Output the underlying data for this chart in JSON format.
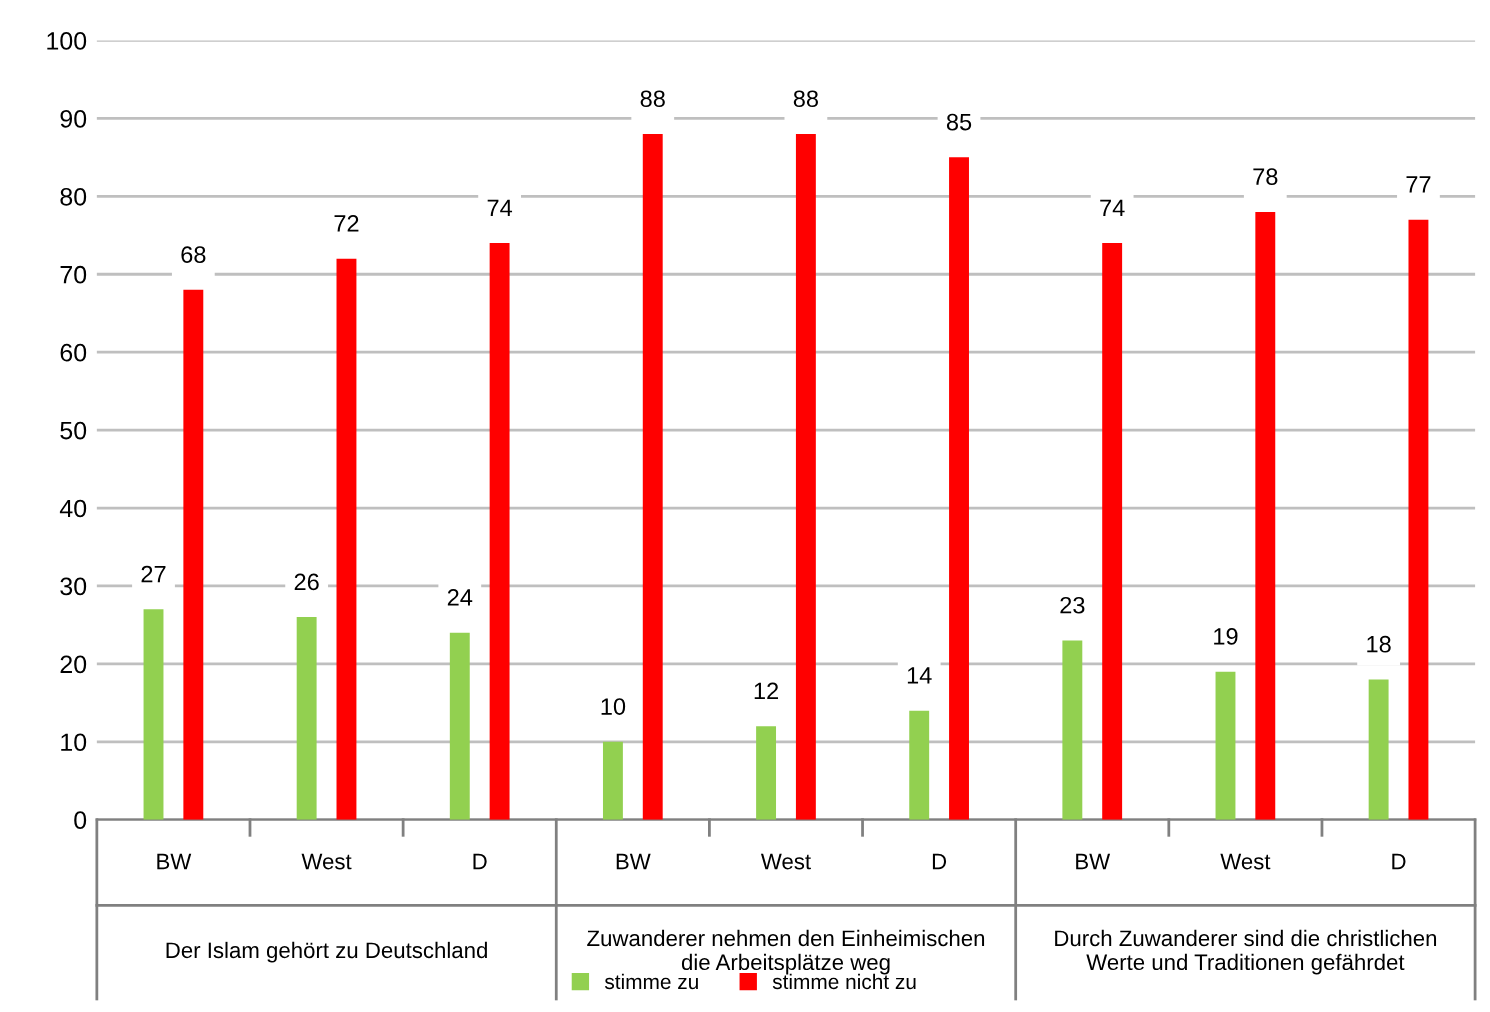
{
  "chart_data": {
    "type": "bar",
    "categories": [
      "BW",
      "West",
      "D",
      "BW",
      "West",
      "D",
      "BW",
      "West",
      "D"
    ],
    "series": [
      {
        "name": "stimme zu",
        "color": "#92d050",
        "values": [
          27,
          26,
          24,
          10,
          12,
          14,
          23,
          19,
          18
        ]
      },
      {
        "name": "stimme nicht zu",
        "color": "#ff0000",
        "values": [
          68,
          72,
          74,
          88,
          88,
          85,
          74,
          78,
          77
        ]
      }
    ],
    "annotations": [
      "Der Islam gehört zu Deutschland",
      "Zuwanderer nehmen den Einheimischen\ndie Arbeitsplätze weg",
      "Durch Zuwanderer sind die christlichen\nWerte und Traditionen gefährdet"
    ],
    "ylim": [
      0,
      100
    ],
    "yticks": [
      0,
      10,
      20,
      30,
      40,
      50,
      60,
      70,
      80,
      90,
      100
    ],
    "grid": "y",
    "legend": "bottom",
    "data_labels": true
  }
}
